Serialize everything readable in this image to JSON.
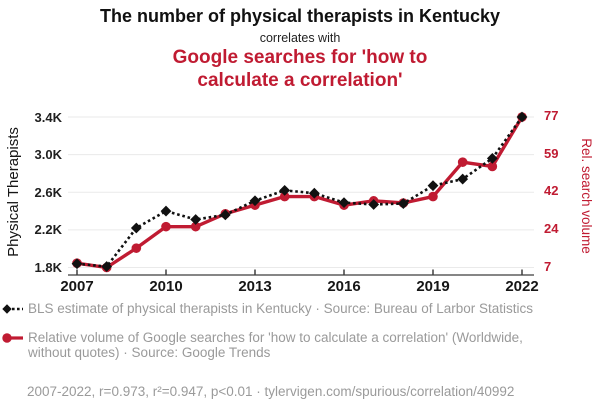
{
  "header": {
    "title_top": "The number of physical therapists in Kentucky",
    "connector": "correlates with",
    "title_bottom": "Google searches for 'how to calculate a correlation'"
  },
  "colors": {
    "ink": "#111111",
    "accent_red": "#c01b32",
    "legend_gray": "#9a9a9a",
    "gridline": "#eaeaea",
    "axis": "#3f3f3f"
  },
  "chart_data": {
    "type": "line",
    "x": [
      2007,
      2008,
      2009,
      2010,
      2011,
      2012,
      2013,
      2014,
      2015,
      2016,
      2017,
      2018,
      2019,
      2020,
      2021,
      2022
    ],
    "x_ticks": [
      2007,
      2010,
      2013,
      2016,
      2019,
      2022
    ],
    "series": [
      {
        "name": "Physical therapists in Kentucky (BLS estimate)",
        "axis": "left",
        "style": "dashed-diamond",
        "color": "#111111",
        "values": [
          1840,
          1810,
          2220,
          2400,
          2310,
          2360,
          2510,
          2620,
          2590,
          2490,
          2470,
          2480,
          2670,
          2740,
          2960,
          3400
        ]
      },
      {
        "name": "Relative volume of Google searches for 'how to calculate a correlation'",
        "axis": "right",
        "style": "solid-circle",
        "color": "#c01b32",
        "values": [
          9,
          7,
          16,
          26,
          26,
          32,
          36,
          40,
          40,
          36,
          38,
          37,
          40,
          56,
          54,
          77
        ]
      }
    ],
    "left_axis": {
      "label": "Physical Therapists",
      "ticks": [
        "1.8K",
        "2.2K",
        "2.6K",
        "3.0K",
        "3.4K"
      ],
      "tick_values": [
        1800,
        2200,
        2600,
        3000,
        3400
      ],
      "range": [
        1800,
        3400
      ]
    },
    "right_axis": {
      "label": "Rel. search volume",
      "ticks": [
        "7",
        "24",
        "42",
        "59",
        "77"
      ],
      "tick_values": [
        7,
        24.5,
        42,
        59.5,
        77
      ],
      "range": [
        7,
        77
      ]
    },
    "grid": "horizontal",
    "legend_position": "bottom-left"
  },
  "legend": {
    "items": [
      {
        "label": "BLS estimate of physical therapists in Kentucky · Source: Bureau of Larbor Statistics",
        "marker": "diamond-dashed"
      },
      {
        "label": "Relative volume of Google searches for 'how to calculate a correlation' (Worldwide, without quotes) · Source: Google Trends",
        "marker": "circle-solid"
      }
    ],
    "footer": "2007-2022, r=0.973, r²=0.947, p<0.01 · tylervigen.com/spurious/correlation/40992"
  }
}
